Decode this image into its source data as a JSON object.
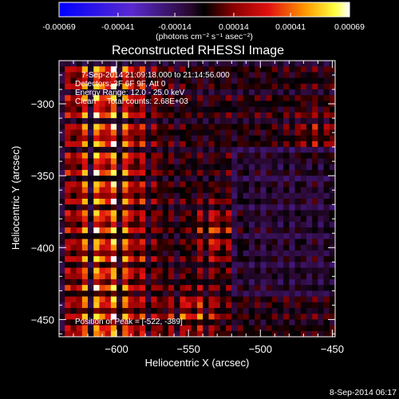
{
  "chart_data": {
    "type": "heatmap",
    "title": "Reconstructed RHESSI Image",
    "xlabel": "Heliocentric X (arcsec)",
    "ylabel": "Heliocentric Y (arcsec)",
    "xlim": [
      -640,
      -448
    ],
    "ylim": [
      -462,
      -270
    ],
    "x_ticks": [
      -600,
      -550,
      -500,
      -450
    ],
    "y_ticks": [
      -450,
      -400,
      -350,
      -300
    ],
    "colorbar": {
      "ticks": [
        "-0.00069",
        "-0.00041",
        "-0.00014",
        "0.00014",
        "0.00041",
        "0.00069"
      ],
      "min": -0.00069,
      "max": 0.00069,
      "label": "(photons cm⁻² s⁻¹ asec⁻²)"
    },
    "annotations": [
      "7-Sep-2014 21:09:18.000 to 21:14:56.000",
      "Detectors: 3F 6F 9F, Att 0",
      "Energy Range: 12.0 - 25.0 keV",
      "Clean     Total counts: 2.68E+03"
    ],
    "peak_text": "Position of Peak = [-522, -389]",
    "peak_position": [
      -522,
      -389
    ],
    "grid": false,
    "colormap": "blue-purple-red-yellow-white"
  },
  "footer": {
    "timestamp": "8-Sep-2014 06:17"
  }
}
